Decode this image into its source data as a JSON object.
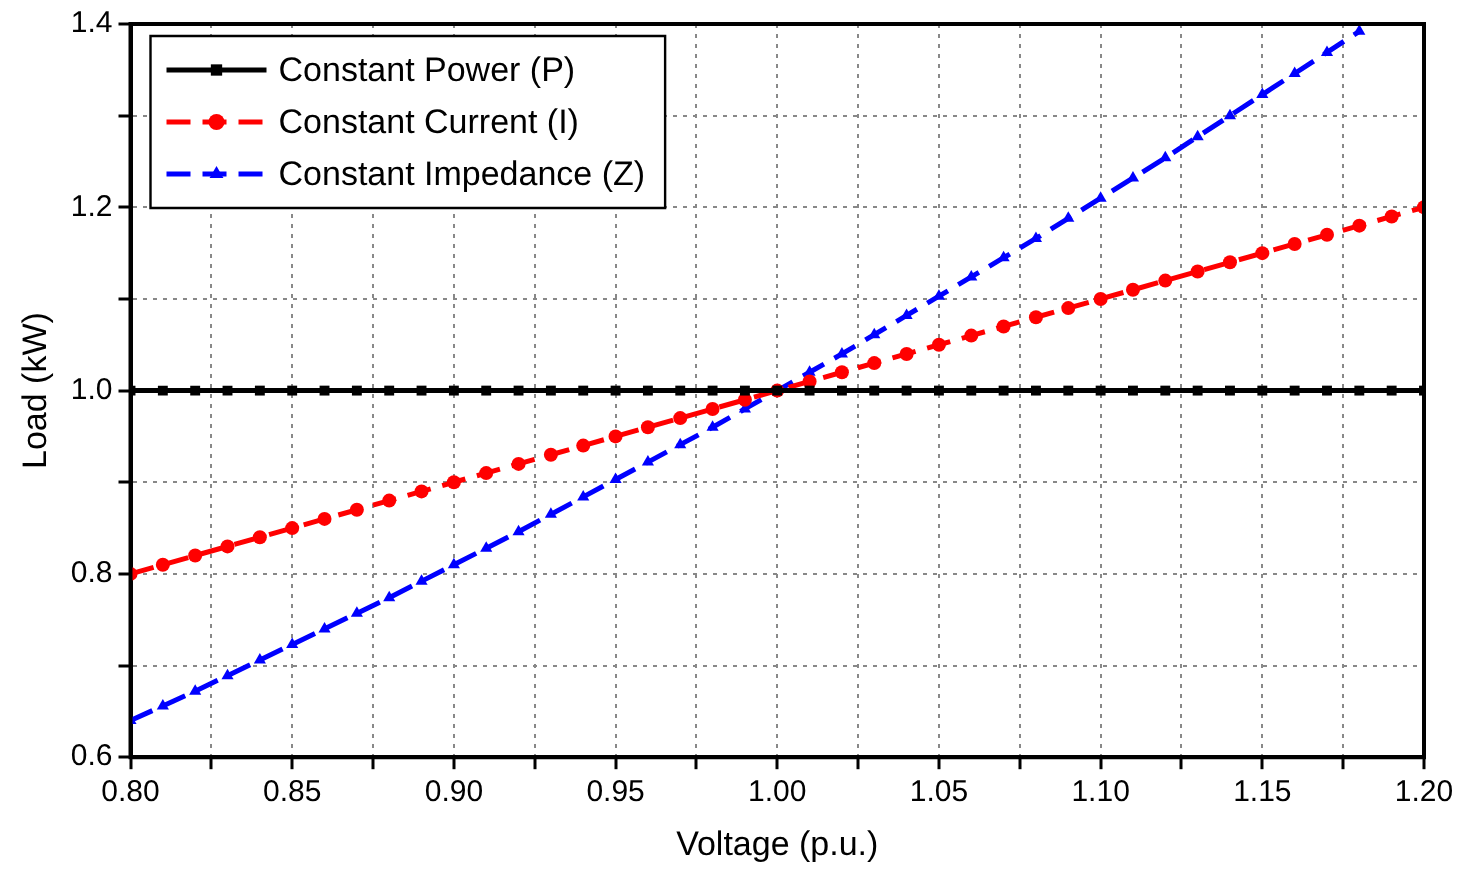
{
  "chart_data": {
    "type": "line",
    "xlabel": "Voltage (p.u.)",
    "ylabel": "Load (kW)",
    "x": [
      0.8,
      0.81,
      0.82,
      0.83,
      0.84,
      0.85,
      0.86,
      0.87,
      0.88,
      0.89,
      0.9,
      0.91,
      0.92,
      0.93,
      0.94,
      0.95,
      0.96,
      0.97,
      0.98,
      0.99,
      1,
      1.01,
      1.02,
      1.03,
      1.04,
      1.05,
      1.06,
      1.07,
      1.08,
      1.09,
      1.1,
      1.11,
      1.12,
      1.13,
      1.14,
      1.15,
      1.16,
      1.17,
      1.18,
      1.19,
      1.2
    ],
    "series": [
      {
        "name": "Constant Power (P)",
        "color": "#000000",
        "marker": "square",
        "line_style": "solid",
        "values": [
          1,
          1,
          1,
          1,
          1,
          1,
          1,
          1,
          1,
          1,
          1,
          1,
          1,
          1,
          1,
          1,
          1,
          1,
          1,
          1,
          1,
          1,
          1,
          1,
          1,
          1,
          1,
          1,
          1,
          1,
          1,
          1,
          1,
          1,
          1,
          1,
          1,
          1,
          1,
          1,
          1
        ]
      },
      {
        "name": "Constant Current (I)",
        "color": "#ff0000",
        "marker": "circle",
        "line_style": "dashed",
        "values": [
          0.8,
          0.81,
          0.82,
          0.83,
          0.84,
          0.85,
          0.86,
          0.87,
          0.88,
          0.89,
          0.9,
          0.91,
          0.92,
          0.93,
          0.94,
          0.95,
          0.96,
          0.97,
          0.98,
          0.99,
          1,
          1.01,
          1.02,
          1.03,
          1.04,
          1.05,
          1.06,
          1.07,
          1.08,
          1.09,
          1.1,
          1.11,
          1.12,
          1.13,
          1.14,
          1.15,
          1.16,
          1.17,
          1.18,
          1.19,
          1.2
        ]
      },
      {
        "name": "Constant Impedance (Z)",
        "color": "#0000ff",
        "marker": "triangle",
        "line_style": "dashed",
        "x": [
          0.8,
          0.81,
          0.82,
          0.83,
          0.84,
          0.85,
          0.86,
          0.87,
          0.88,
          0.89,
          0.9,
          0.91,
          0.92,
          0.93,
          0.94,
          0.95,
          0.96,
          0.97,
          0.98,
          0.99,
          1,
          1.01,
          1.02,
          1.03,
          1.04,
          1.05,
          1.06,
          1.07,
          1.08,
          1.09,
          1.1,
          1.11,
          1.12,
          1.13,
          1.14,
          1.15,
          1.16,
          1.17,
          1.18
        ],
        "values": [
          0.64,
          0.656,
          0.672,
          0.689,
          0.706,
          0.723,
          0.74,
          0.757,
          0.774,
          0.792,
          0.81,
          0.828,
          0.846,
          0.865,
          0.884,
          0.903,
          0.922,
          0.941,
          0.96,
          0.98,
          1,
          1.02,
          1.04,
          1.061,
          1.082,
          1.103,
          1.124,
          1.145,
          1.166,
          1.188,
          1.21,
          1.232,
          1.254,
          1.277,
          1.3,
          1.323,
          1.346,
          1.369,
          1.392
        ]
      }
    ],
    "xlim": [
      0.8,
      1.2
    ],
    "xticks": [
      {
        "value": 0.8,
        "label": "0.80"
      },
      {
        "value": 0.825,
        "label": null
      },
      {
        "value": 0.85,
        "label": "0.85"
      },
      {
        "value": 0.875,
        "label": null
      },
      {
        "value": 0.9,
        "label": "0.90"
      },
      {
        "value": 0.925,
        "label": null
      },
      {
        "value": 0.95,
        "label": "0.95"
      },
      {
        "value": 0.975,
        "label": null
      },
      {
        "value": 1,
        "label": "1.00"
      },
      {
        "value": 1.025,
        "label": null
      },
      {
        "value": 1.05,
        "label": "1.05"
      },
      {
        "value": 1.075,
        "label": null
      },
      {
        "value": 1.1,
        "label": "1.10"
      },
      {
        "value": 1.125,
        "label": null
      },
      {
        "value": 1.15,
        "label": "1.15"
      },
      {
        "value": 1.175,
        "label": null
      },
      {
        "value": 1.2,
        "label": "1.20"
      }
    ],
    "ylim": [
      0.6,
      1.4
    ],
    "yticks": [
      {
        "value": 0.6,
        "label": "0.6"
      },
      {
        "value": 0.7,
        "label": null
      },
      {
        "value": 0.8,
        "label": "0.8"
      },
      {
        "value": 0.9,
        "label": null
      },
      {
        "value": 1,
        "label": "1.0"
      },
      {
        "value": 1.1,
        "label": null
      },
      {
        "value": 1.2,
        "label": "1.2"
      },
      {
        "value": 1.3,
        "label": null
      },
      {
        "value": 1.4,
        "label": "1.4"
      }
    ],
    "grid": true,
    "legend": "top left"
  }
}
